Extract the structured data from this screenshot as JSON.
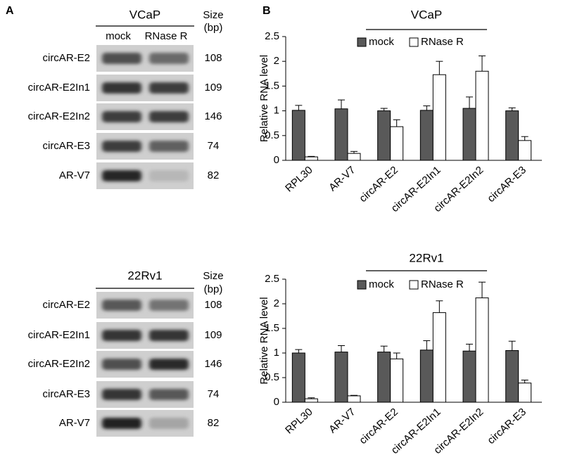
{
  "panels": {
    "a": "A",
    "b": "B"
  },
  "gels": [
    {
      "cell_line": "VCaP",
      "lanes": [
        "mock",
        "RNase R"
      ],
      "size_header": [
        "Size",
        "(bp)"
      ],
      "rows": [
        {
          "name": "circAR-E2",
          "size": 108
        },
        {
          "name": "circAR-E2In1",
          "size": 109
        },
        {
          "name": "circAR-E2In2",
          "size": 146
        },
        {
          "name": "circAR-E3",
          "size": 74
        },
        {
          "name": "AR-V7",
          "size": 82
        }
      ]
    },
    {
      "cell_line": "22Rv1",
      "lanes": [
        "mock",
        "RNase R"
      ],
      "size_header": [
        "Size",
        "(bp)"
      ],
      "rows": [
        {
          "name": "circAR-E2",
          "size": 108
        },
        {
          "name": "circAR-E2In1",
          "size": 109
        },
        {
          "name": "circAR-E2In2",
          "size": 146
        },
        {
          "name": "circAR-E3",
          "size": 74
        },
        {
          "name": "AR-V7",
          "size": 82
        }
      ]
    }
  ],
  "chart_data": [
    {
      "type": "bar",
      "title": "VCaP",
      "ylabel": "Relative RNA level",
      "categories": [
        "RPL30",
        "AR-V7",
        "circAR-E2",
        "circAR-E2In1",
        "circAR-E2In2",
        "circAR-E3"
      ],
      "series": [
        {
          "name": "mock",
          "color": "#595959",
          "values": [
            1.01,
            1.04,
            1.0,
            1.01,
            1.05,
            1.0
          ],
          "errors": [
            0.1,
            0.18,
            0.05,
            0.09,
            0.23,
            0.06
          ]
        },
        {
          "name": "RNase R",
          "color": "#ffffff",
          "values": [
            0.07,
            0.14,
            0.68,
            1.73,
            1.8,
            0.4
          ],
          "errors": [
            0.01,
            0.04,
            0.14,
            0.27,
            0.31,
            0.08
          ]
        }
      ],
      "ylim": [
        0,
        2.5
      ],
      "yticks": [
        0,
        0.5,
        1,
        1.5,
        2,
        2.5
      ]
    },
    {
      "type": "bar",
      "title": "22Rv1",
      "ylabel": "Relative RNA level",
      "categories": [
        "RPL30",
        "AR-V7",
        "circAR-E2",
        "circAR-E2In1",
        "circAR-E2In2",
        "circAR-E3"
      ],
      "series": [
        {
          "name": "mock",
          "color": "#595959",
          "values": [
            1.0,
            1.02,
            1.02,
            1.06,
            1.04,
            1.05
          ],
          "errors": [
            0.07,
            0.13,
            0.12,
            0.19,
            0.14,
            0.19
          ]
        },
        {
          "name": "RNase R",
          "color": "#ffffff",
          "values": [
            0.07,
            0.13,
            0.88,
            1.82,
            2.12,
            0.39
          ],
          "errors": [
            0.02,
            0.01,
            0.12,
            0.24,
            0.32,
            0.06
          ]
        }
      ],
      "ylim": [
        0,
        2.5
      ],
      "yticks": [
        0,
        0.5,
        1,
        1.5,
        2,
        2.5
      ]
    }
  ]
}
